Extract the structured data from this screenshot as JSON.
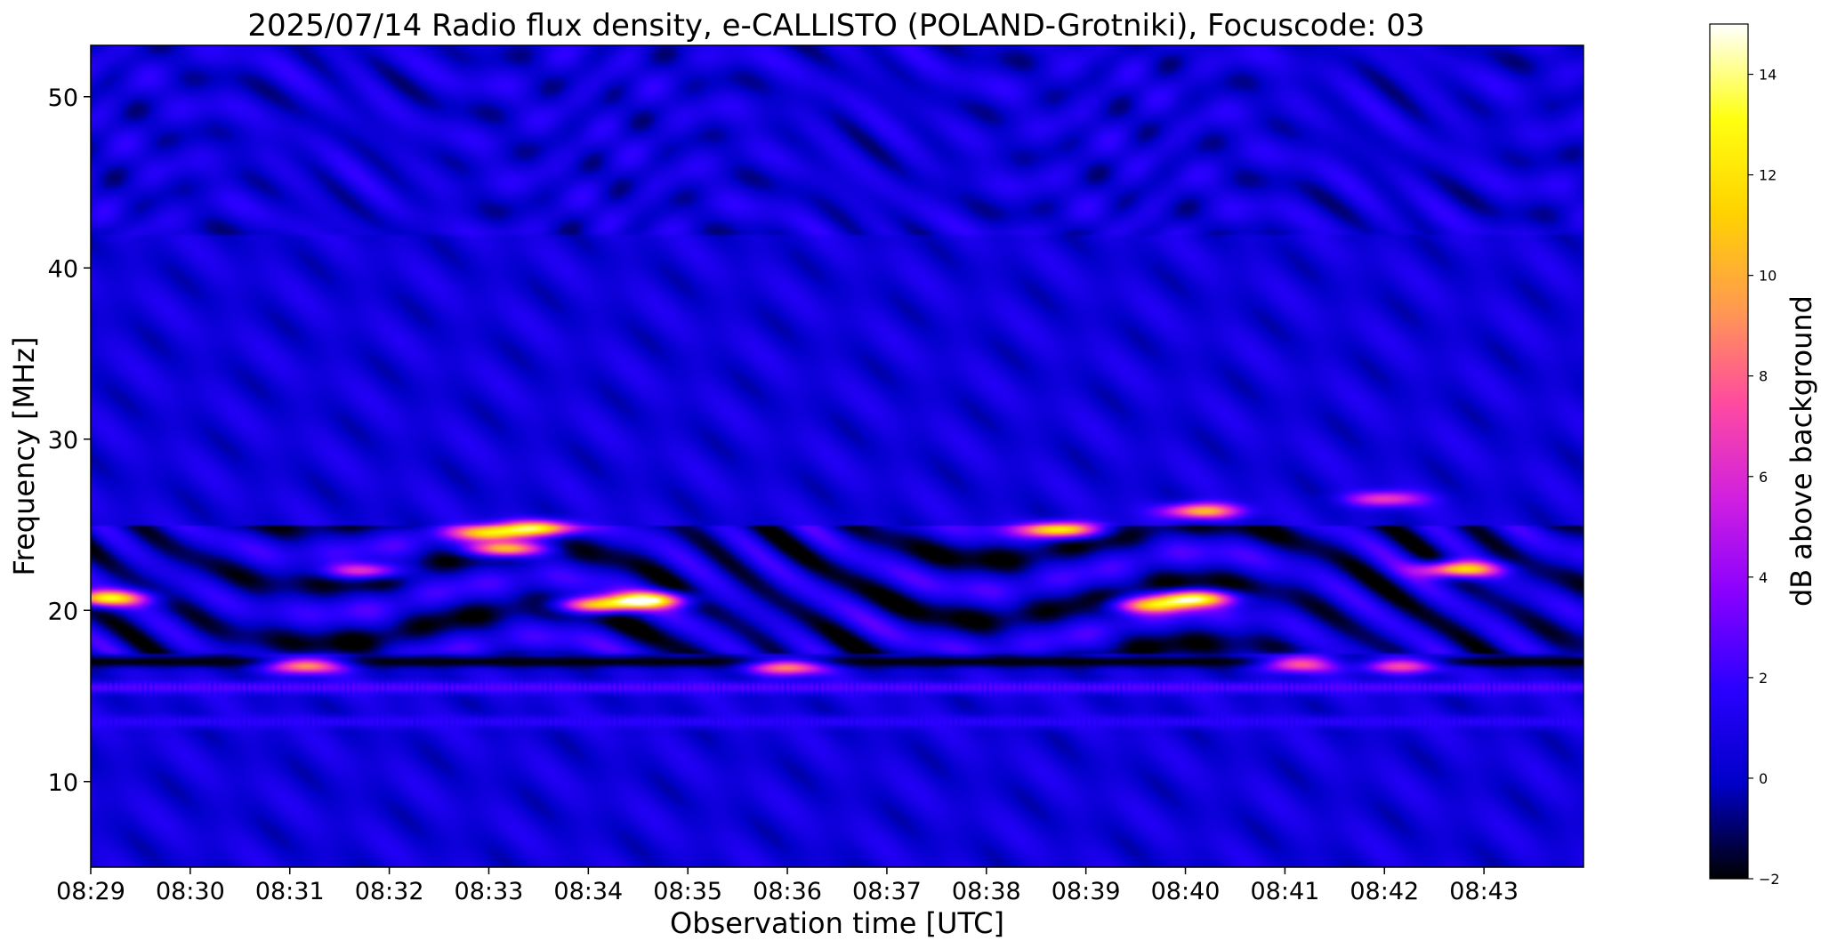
{
  "chart_data": {
    "type": "heatmap",
    "title": "2025/07/14  Radio flux density, e-CALLISTO (POLAND-Grotniki), Focuscode: 03",
    "xlabel": "Observation time [UTC]",
    "ylabel": "Frequency [MHz]",
    "colorbar_label": "dB above background",
    "xlim": [
      "08:29:00",
      "08:44:00"
    ],
    "ylim": [
      5,
      53
    ],
    "x_ticks": [
      "08:29",
      "08:30",
      "08:31",
      "08:32",
      "08:33",
      "08:34",
      "08:35",
      "08:36",
      "08:37",
      "08:38",
      "08:39",
      "08:40",
      "08:41",
      "08:42",
      "08:43"
    ],
    "y_ticks": [
      10,
      20,
      30,
      40,
      50
    ],
    "colorbar_range": [
      -2,
      15
    ],
    "colorbar_ticks": [
      -2,
      0,
      2,
      4,
      6,
      8,
      10,
      12,
      14
    ],
    "colormap": [
      "#000000",
      "#0000c8",
      "#2a00ff",
      "#8800ff",
      "#d020e0",
      "#ff4aa0",
      "#ff9a50",
      "#ffd200",
      "#ffff10",
      "#ffffff"
    ],
    "background_level_db": 0.5,
    "features": [
      {
        "kind": "dark band",
        "time_start": "08:29:00",
        "time_end": "08:44:00",
        "freq_mhz": 17.0,
        "db": -2
      },
      {
        "kind": "interference line",
        "time_start": "08:29:00",
        "time_end": "08:44:00",
        "freq_mhz": 15.5,
        "db": 3
      },
      {
        "kind": "interference line",
        "time_start": "08:29:00",
        "time_end": "08:44:00",
        "freq_mhz": 13.5,
        "db": 2
      },
      {
        "kind": "burst",
        "time": "08:29:10",
        "freq_mhz": 20.7,
        "db": 13
      },
      {
        "kind": "burst",
        "time": "08:31:10",
        "freq_mhz": 16.8,
        "db": 11
      },
      {
        "kind": "burst",
        "time": "08:31:45",
        "freq_mhz": 22.3,
        "db": 8
      },
      {
        "kind": "burst",
        "time": "08:33:00",
        "freq_mhz": 24.5,
        "db": 11
      },
      {
        "kind": "burst",
        "time": "08:33:10",
        "freq_mhz": 23.6,
        "db": 13
      },
      {
        "kind": "burst",
        "time": "08:33:30",
        "freq_mhz": 24.8,
        "db": 12
      },
      {
        "kind": "burst",
        "time": "08:34:05",
        "freq_mhz": 20.3,
        "db": 12
      },
      {
        "kind": "burst",
        "time": "08:34:35",
        "freq_mhz": 20.6,
        "db": 14
      },
      {
        "kind": "burst",
        "time": "08:36:00",
        "freq_mhz": 16.7,
        "db": 10
      },
      {
        "kind": "burst",
        "time": "08:38:45",
        "freq_mhz": 24.7,
        "db": 13
      },
      {
        "kind": "burst",
        "time": "08:39:40",
        "freq_mhz": 20.3,
        "db": 10
      },
      {
        "kind": "burst",
        "time": "08:40:05",
        "freq_mhz": 20.7,
        "db": 14
      },
      {
        "kind": "burst",
        "time": "08:40:10",
        "freq_mhz": 25.8,
        "db": 11
      },
      {
        "kind": "burst",
        "time": "08:41:10",
        "freq_mhz": 16.9,
        "db": 10
      },
      {
        "kind": "burst",
        "time": "08:42:10",
        "freq_mhz": 16.8,
        "db": 9
      },
      {
        "kind": "burst",
        "time": "08:42:45",
        "freq_mhz": 22.4,
        "db": 13
      },
      {
        "kind": "burst",
        "time": "08:42:00",
        "freq_mhz": 26.5,
        "db": 7
      }
    ]
  }
}
